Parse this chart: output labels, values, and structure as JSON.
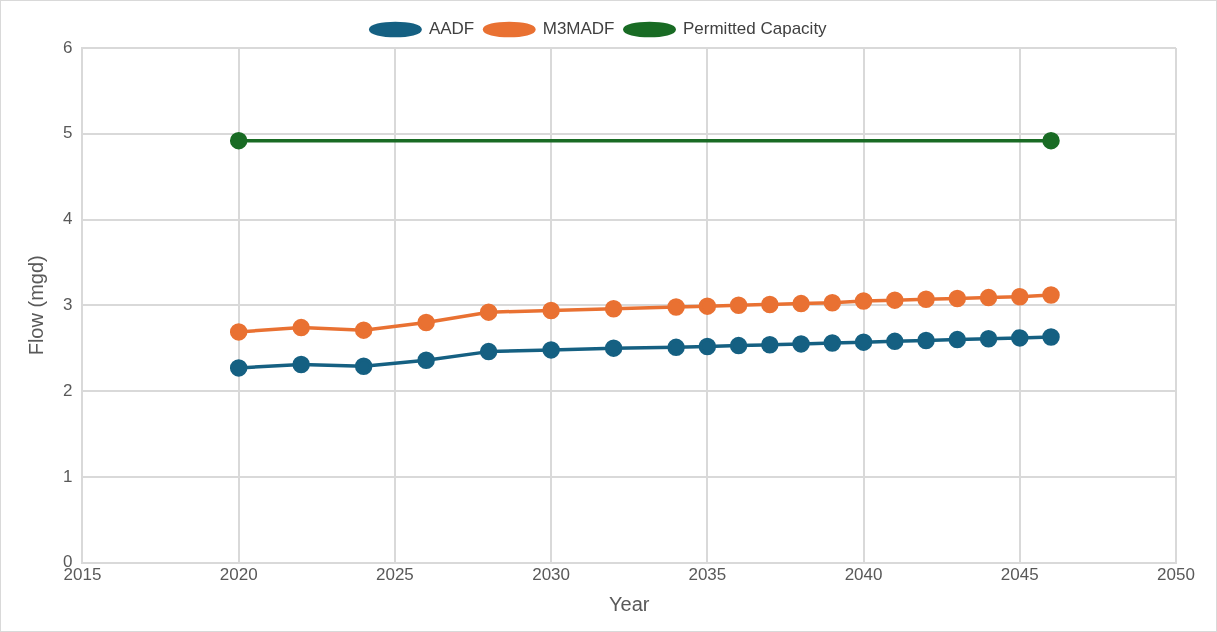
{
  "chart_data": {
    "type": "line",
    "xlabel": "Year",
    "ylabel": "Flow (mgd)",
    "xlim": [
      2015,
      2050
    ],
    "xticks": [
      2015,
      2020,
      2025,
      2030,
      2035,
      2040,
      2045,
      2050
    ],
    "ylim": [
      0,
      6
    ],
    "yticks": [
      0,
      1,
      2,
      3,
      4,
      5,
      6
    ],
    "grid": true,
    "legend": "top",
    "marker": "circle",
    "line_style": "solid",
    "series": [
      {
        "name": "AADF",
        "color": "#156082",
        "x": [
          2020,
          2022,
          2024,
          2026,
          2028,
          2030,
          2032,
          2034,
          2035,
          2036,
          2037,
          2038,
          2039,
          2040,
          2041,
          2042,
          2043,
          2044,
          2045,
          2046
        ],
        "values": [
          2.27,
          2.31,
          2.29,
          2.36,
          2.46,
          2.48,
          2.5,
          2.51,
          2.52,
          2.53,
          2.54,
          2.55,
          2.56,
          2.57,
          2.58,
          2.59,
          2.6,
          2.61,
          2.62,
          2.63
        ]
      },
      {
        "name": "M3MADF",
        "color": "#e97132",
        "x": [
          2020,
          2022,
          2024,
          2026,
          2028,
          2030,
          2032,
          2034,
          2035,
          2036,
          2037,
          2038,
          2039,
          2040,
          2041,
          2042,
          2043,
          2044,
          2045,
          2046
        ],
        "values": [
          2.69,
          2.74,
          2.71,
          2.8,
          2.92,
          2.94,
          2.96,
          2.98,
          2.99,
          3.0,
          3.01,
          3.02,
          3.03,
          3.05,
          3.06,
          3.07,
          3.08,
          3.09,
          3.1,
          3.12
        ]
      },
      {
        "name": "Permitted Capacity",
        "color": "#196b24",
        "x": [
          2020,
          2046
        ],
        "values": [
          4.92,
          4.92
        ]
      }
    ]
  }
}
